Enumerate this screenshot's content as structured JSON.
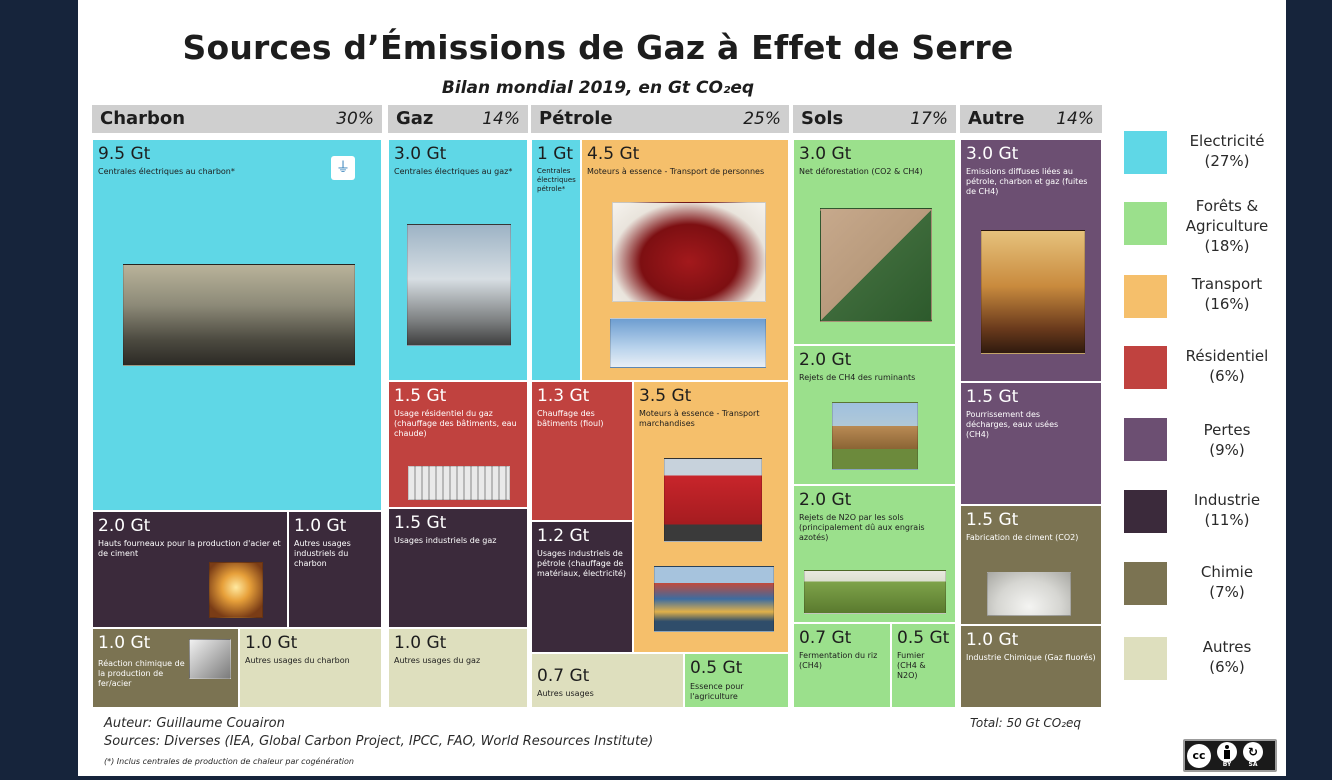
{
  "title": "Sources d’Émissions de Gaz à Effet de Serre",
  "subtitle": "Bilan mondial 2019, en Gt CO₂eq",
  "colors": {
    "electricite": "#5fd7e6",
    "forets": "#9be08c",
    "transport": "#f5bf6b",
    "residentiel": "#c0423f",
    "pertes": "#6c4f72",
    "industrie": "#3b2a3b",
    "chimie": "#7b7352",
    "autres": "#dedfbe"
  },
  "columns": [
    {
      "name": "Charbon",
      "pct": "30%"
    },
    {
      "name": "Gaz",
      "pct": "14%"
    },
    {
      "name": "Pétrole",
      "pct": "25%"
    },
    {
      "name": "Sols",
      "pct": "17%"
    },
    {
      "name": "Autre",
      "pct": "14%"
    }
  ],
  "blocks": {
    "charbon_elec": {
      "value": "9.5 Gt",
      "desc": "Centrales électriques au charbon*"
    },
    "charbon_hauts": {
      "value": "2.0 Gt",
      "desc": "Hauts fourneaux pour la production d'acier et de ciment"
    },
    "charbon_indus": {
      "value": "1.0 Gt",
      "desc": "Autres usages industriels du charbon"
    },
    "charbon_reaction": {
      "value": "1.0 Gt",
      "desc": "Réaction chimique de la production de fer/acier"
    },
    "charbon_autres": {
      "value": "1.0 Gt",
      "desc": "Autres usages du charbon"
    },
    "gaz_elec": {
      "value": "3.0 Gt",
      "desc": "Centrales électriques au gaz*"
    },
    "gaz_resid": {
      "value": "1.5 Gt",
      "desc": "Usage résidentiel du gaz (chauffage des bâtiments, eau chaude)"
    },
    "gaz_indus": {
      "value": "1.5 Gt",
      "desc": "Usages industriels de gaz"
    },
    "gaz_autres": {
      "value": "1.0 Gt",
      "desc": "Autres usages du gaz"
    },
    "petrole_elec": {
      "value": "1 Gt",
      "desc": "Centrales électriques pétrole*"
    },
    "petrole_pers": {
      "value": "4.5 Gt",
      "desc": "Moteurs à essence - Transport de personnes"
    },
    "petrole_chauff": {
      "value": "1.3 Gt",
      "desc": "Chauffage des bâtiments (fioul)"
    },
    "petrole_march": {
      "value": "3.5 Gt",
      "desc": "Moteurs à essence - Transport marchandises"
    },
    "petrole_indus": {
      "value": "1.2 Gt",
      "desc": "Usages industriels de pétrole (chauffage de matériaux, électricité)"
    },
    "petrole_autres": {
      "value": "0.7 Gt",
      "desc": "Autres usages"
    },
    "petrole_agri": {
      "value": "0.5 Gt",
      "desc": "Essence pour l'agriculture"
    },
    "sols_defor": {
      "value": "3.0 Gt",
      "desc": "Net déforestation (CO2 & CH4)"
    },
    "sols_rumin": {
      "value": "2.0 Gt",
      "desc": "Rejets de CH4 des ruminants"
    },
    "sols_n2o": {
      "value": "2.0 Gt",
      "desc": "Rejets de N2O par les sols (principalement dû aux engrais azotés)"
    },
    "sols_riz": {
      "value": "0.7 Gt",
      "desc": "Fermentation du riz (CH4)"
    },
    "sols_fumier": {
      "value": "0.5 Gt",
      "desc": "Fumier (CH4 & N2O)"
    },
    "autre_diffuses": {
      "value": "3.0 Gt",
      "desc": "Emissions diffuses liées au pétrole, charbon et gaz (fuites de CH4)"
    },
    "autre_decharges": {
      "value": "1.5 Gt",
      "desc": "Pourrissement des décharges, eaux usées (CH4)"
    },
    "autre_ciment": {
      "value": "1.5 Gt",
      "desc": "Fabrication de ciment (CO2)"
    },
    "autre_chimie": {
      "value": "1.0 Gt",
      "desc": "Industrie Chimique (Gaz fluorés)"
    }
  },
  "legend": [
    {
      "label": "Electricité",
      "pct": "(27%)"
    },
    {
      "label": "Forêts & Agriculture",
      "pct": "(18%)"
    },
    {
      "label": "Transport",
      "pct": "(16%)"
    },
    {
      "label": "Résidentiel",
      "pct": "(6%)"
    },
    {
      "label": "Pertes",
      "pct": "(9%)"
    },
    {
      "label": "Industrie",
      "pct": "(11%)"
    },
    {
      "label": "Chimie",
      "pct": "(7%)"
    },
    {
      "label": "Autres",
      "pct": "(6%)"
    }
  ],
  "footer": {
    "author": "Auteur: Guillaume Couairon",
    "sources": "Sources: Diverses (IEA, Global Carbon Project, IPCC, FAO, World Resources Institute)",
    "note": "(*) Inclus centrales de production de chaleur par cogénération",
    "total": "Total: 50 Gt CO₂eq"
  },
  "license": {
    "cc": "cc",
    "by": "BY",
    "sa": "SA"
  },
  "chart_data": {
    "type": "treemap",
    "title": "Sources d’Émissions de Gaz à Effet de Serre",
    "subtitle": "Bilan mondial 2019, en Gt CO₂eq",
    "unit": "Gt CO₂eq",
    "total": 50,
    "groups": [
      {
        "name": "Charbon",
        "pct": 30,
        "items": [
          {
            "label": "Centrales électriques au charbon",
            "value": 9.5,
            "category": "Electricité"
          },
          {
            "label": "Hauts fourneaux pour la production d'acier et de ciment",
            "value": 2.0,
            "category": "Industrie"
          },
          {
            "label": "Autres usages industriels du charbon",
            "value": 1.0,
            "category": "Industrie"
          },
          {
            "label": "Réaction chimique de la production de fer/acier",
            "value": 1.0,
            "category": "Chimie"
          },
          {
            "label": "Autres usages du charbon",
            "value": 1.0,
            "category": "Autres"
          }
        ]
      },
      {
        "name": "Gaz",
        "pct": 14,
        "items": [
          {
            "label": "Centrales électriques au gaz",
            "value": 3.0,
            "category": "Electricité"
          },
          {
            "label": "Usage résidentiel du gaz",
            "value": 1.5,
            "category": "Résidentiel"
          },
          {
            "label": "Usages industriels de gaz",
            "value": 1.5,
            "category": "Industrie"
          },
          {
            "label": "Autres usages du gaz",
            "value": 1.0,
            "category": "Autres"
          }
        ]
      },
      {
        "name": "Pétrole",
        "pct": 25,
        "items": [
          {
            "label": "Centrales électriques pétrole",
            "value": 1.0,
            "category": "Electricité"
          },
          {
            "label": "Moteurs à essence - Transport de personnes",
            "value": 4.5,
            "category": "Transport"
          },
          {
            "label": "Chauffage des bâtiments (fioul)",
            "value": 1.3,
            "category": "Résidentiel"
          },
          {
            "label": "Moteurs à essence - Transport marchandises",
            "value": 3.5,
            "category": "Transport"
          },
          {
            "label": "Usages industriels de pétrole",
            "value": 1.2,
            "category": "Industrie"
          },
          {
            "label": "Autres usages",
            "value": 0.7,
            "category": "Autres"
          },
          {
            "label": "Essence pour l'agriculture",
            "value": 0.5,
            "category": "Forêts & Agriculture"
          }
        ]
      },
      {
        "name": "Sols",
        "pct": 17,
        "items": [
          {
            "label": "Net déforestation (CO2 & CH4)",
            "value": 3.0,
            "category": "Forêts & Agriculture"
          },
          {
            "label": "Rejets de CH4 des ruminants",
            "value": 2.0,
            "category": "Forêts & Agriculture"
          },
          {
            "label": "Rejets de N2O par les sols",
            "value": 2.0,
            "category": "Forêts & Agriculture"
          },
          {
            "label": "Fermentation du riz (CH4)",
            "value": 0.7,
            "category": "Forêts & Agriculture"
          },
          {
            "label": "Fumier (CH4 & N2O)",
            "value": 0.5,
            "category": "Forêts & Agriculture"
          }
        ]
      },
      {
        "name": "Autre",
        "pct": 14,
        "items": [
          {
            "label": "Emissions diffuses liées au pétrole, charbon et gaz",
            "value": 3.0,
            "category": "Pertes"
          },
          {
            "label": "Pourrissement des décharges, eaux usées (CH4)",
            "value": 1.5,
            "category": "Pertes"
          },
          {
            "label": "Fabrication de ciment (CO2)",
            "value": 1.5,
            "category": "Chimie"
          },
          {
            "label": "Industrie Chimique (Gaz fluorés)",
            "value": 1.0,
            "category": "Chimie"
          }
        ]
      }
    ],
    "legend": [
      {
        "name": "Electricité",
        "pct": 27
      },
      {
        "name": "Forêts & Agriculture",
        "pct": 18
      },
      {
        "name": "Transport",
        "pct": 16
      },
      {
        "name": "Résidentiel",
        "pct": 6
      },
      {
        "name": "Pertes",
        "pct": 9
      },
      {
        "name": "Industrie",
        "pct": 11
      },
      {
        "name": "Chimie",
        "pct": 7
      },
      {
        "name": "Autres",
        "pct": 6
      }
    ]
  }
}
